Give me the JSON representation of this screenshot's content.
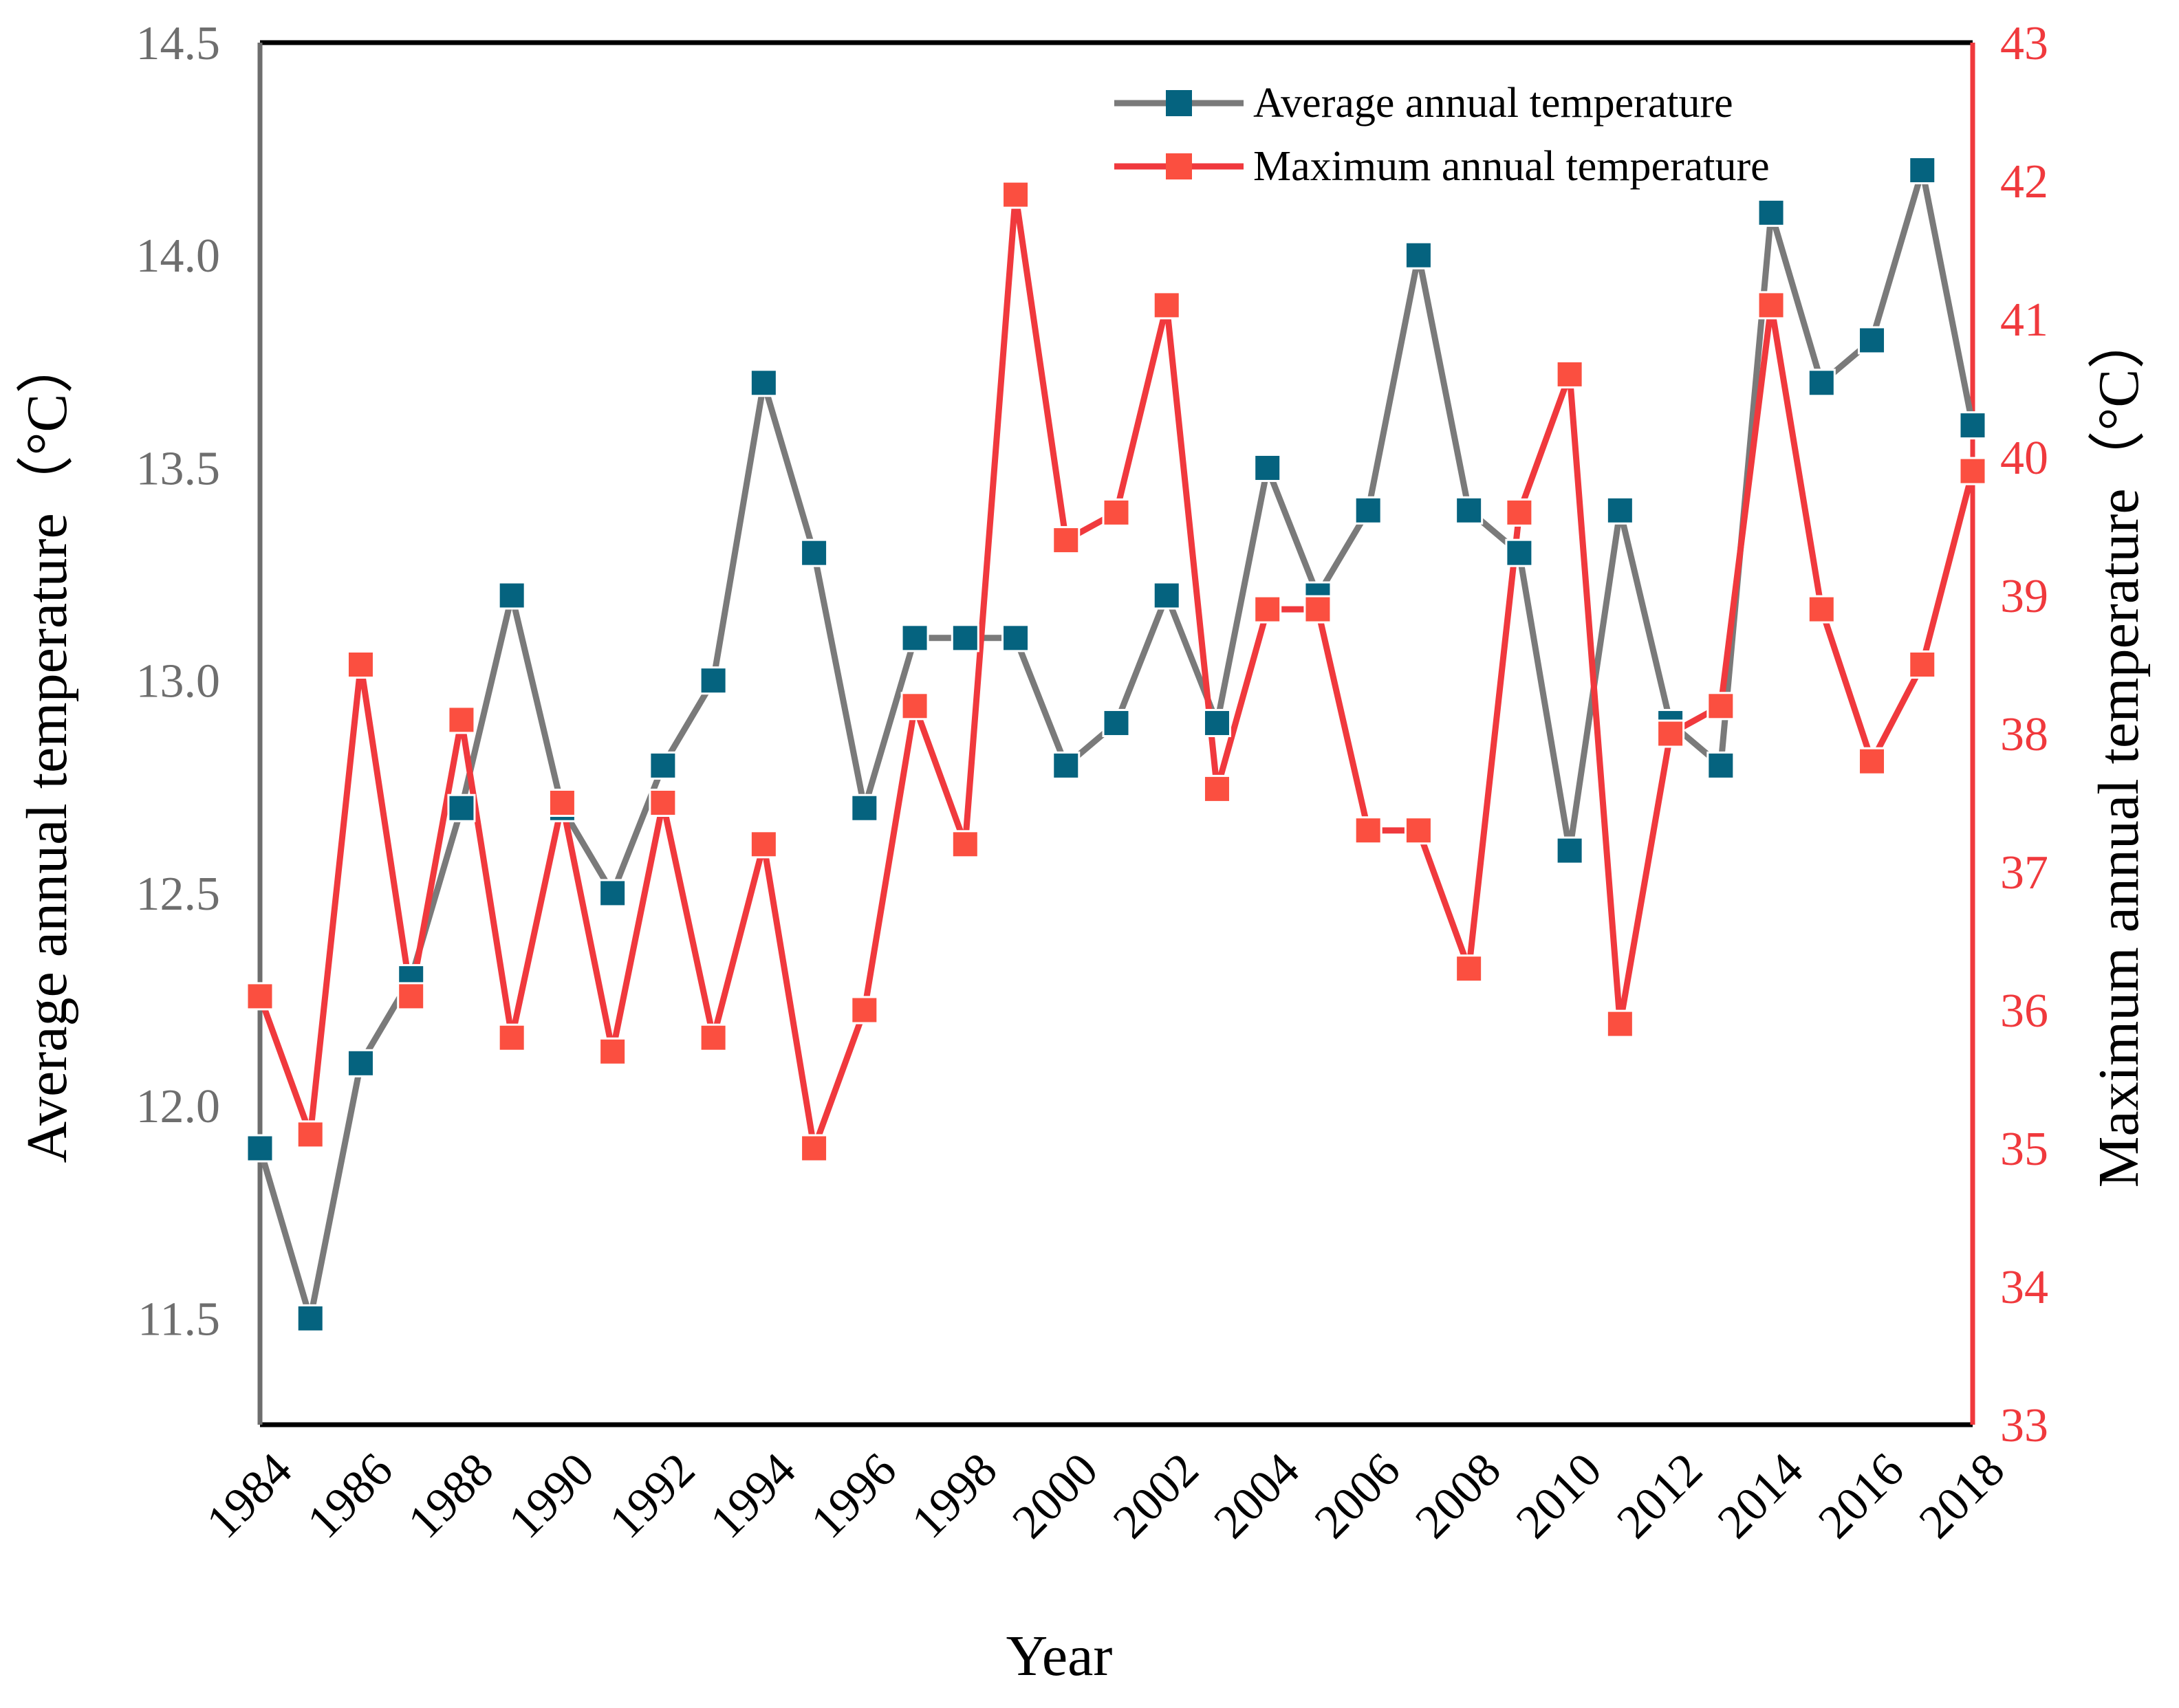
{
  "chart_data": {
    "type": "line",
    "title": "",
    "xlabel": "Year",
    "ylabel_left": "Average annual temperature（°C）",
    "ylabel_right": "Maximum annual temperature（°C）",
    "x_tick_labels": [
      "1984",
      "1986",
      "1988",
      "1990",
      "1992",
      "1994",
      "1996",
      "1998",
      "2000",
      "2002",
      "2004",
      "2006",
      "2008",
      "2010",
      "2012",
      "2014",
      "2016",
      "2018"
    ],
    "x_range": [
      1984,
      2018
    ],
    "y_left_range": [
      11.25,
      14.5
    ],
    "y_left_ticks": [
      "11.5",
      "12.0",
      "12.5",
      "13.0",
      "13.5",
      "14.0",
      "14.5"
    ],
    "y_right_range": [
      33,
      43
    ],
    "y_right_ticks": [
      "33",
      "34",
      "35",
      "36",
      "37",
      "38",
      "39",
      "40",
      "41",
      "42",
      "43"
    ],
    "grid": false,
    "legend_position": "top-right",
    "x": [
      1984,
      1985,
      1986,
      1987,
      1988,
      1989,
      1990,
      1991,
      1992,
      1993,
      1994,
      1995,
      1996,
      1997,
      1998,
      1999,
      2000,
      2001,
      2002,
      2003,
      2004,
      2005,
      2006,
      2007,
      2008,
      2009,
      2010,
      2011,
      2012,
      2013,
      2014,
      2015,
      2016,
      2017,
      2018
    ],
    "series": [
      {
        "name": "Average annual temperature",
        "axis": "left",
        "line_color": "#7a7a7a",
        "marker_color": "#05637f",
        "values": [
          11.9,
          11.5,
          12.1,
          12.3,
          12.7,
          13.2,
          12.7,
          12.5,
          12.8,
          13.0,
          13.7,
          13.3,
          12.7,
          13.1,
          13.1,
          13.1,
          12.8,
          12.9,
          13.2,
          12.9,
          13.5,
          13.2,
          13.4,
          14.0,
          13.4,
          13.3,
          12.6,
          13.4,
          12.9,
          12.8,
          14.1,
          13.7,
          13.8,
          14.2,
          13.6
        ]
      },
      {
        "name": "Maximum annual temperature",
        "axis": "right",
        "line_color": "#f0393d",
        "marker_color": "#fb4f40",
        "values": [
          36.1,
          35.1,
          38.5,
          36.1,
          38.1,
          35.8,
          37.5,
          35.7,
          37.5,
          35.8,
          37.2,
          35.0,
          36.0,
          38.2,
          37.2,
          41.9,
          39.4,
          39.6,
          41.1,
          37.6,
          38.9,
          38.9,
          37.3,
          37.3,
          36.3,
          39.6,
          40.6,
          35.9,
          38.0,
          38.2,
          41.1,
          38.9,
          37.8,
          38.5,
          39.9
        ]
      }
    ]
  },
  "colors": {
    "left_axis": "#6e6e6e",
    "right_axis": "#f0393d",
    "frame": "#000000"
  }
}
